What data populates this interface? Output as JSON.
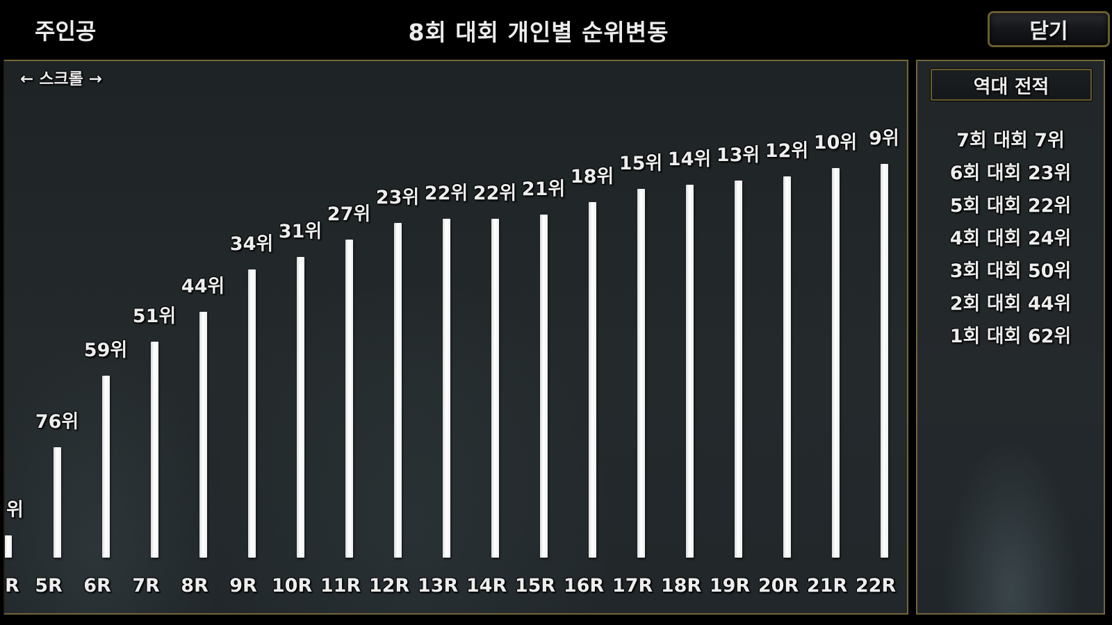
{
  "window": {
    "player_name": "주인공",
    "title": "8회 대회 개인별 순위변동",
    "close_button": "닫기"
  },
  "chart_panel": {
    "scroll_hint": "← 스크롤 →",
    "clipped_left_bar": {
      "rank_label_fragment": "위",
      "round_label_fragment": "R"
    }
  },
  "chart_data": {
    "type": "bar",
    "title": "8회 대회 개인별 순위변동",
    "categories": [
      "5R",
      "6R",
      "7R",
      "8R",
      "9R",
      "10R",
      "11R",
      "12R",
      "13R",
      "14R",
      "15R",
      "16R",
      "17R",
      "18R",
      "19R",
      "20R",
      "21R",
      "22R"
    ],
    "values": [
      76,
      59,
      51,
      44,
      34,
      31,
      27,
      23,
      22,
      22,
      21,
      18,
      15,
      14,
      13,
      12,
      10,
      9
    ],
    "bar_labels": [
      "76위",
      "59위",
      "51위",
      "44위",
      "34위",
      "31위",
      "27위",
      "23위",
      "22위",
      "22위",
      "21위",
      "18위",
      "15위",
      "14위",
      "13위",
      "12위",
      "10위",
      "9위"
    ],
    "value_suffix": "위",
    "orientation": "vertical",
    "value_axis_labels_hidden": true,
    "note_scale": "lower rank number = taller bar",
    "bar_color": "#ffffff",
    "legend": "none",
    "grid": "off"
  },
  "sidebar": {
    "header": "역대 전적",
    "records": [
      "7회 대회 7위",
      "6회 대회 23위",
      "5회 대회 22위",
      "4회 대회 24위",
      "3회 대회 50위",
      "2회 대회 44위",
      "1회 대회 62위"
    ]
  },
  "colors": {
    "background": "#000000",
    "panel_background": "#23282b",
    "accent_border": "#75663a",
    "bar": "#ffffff",
    "text": "#ededed"
  }
}
